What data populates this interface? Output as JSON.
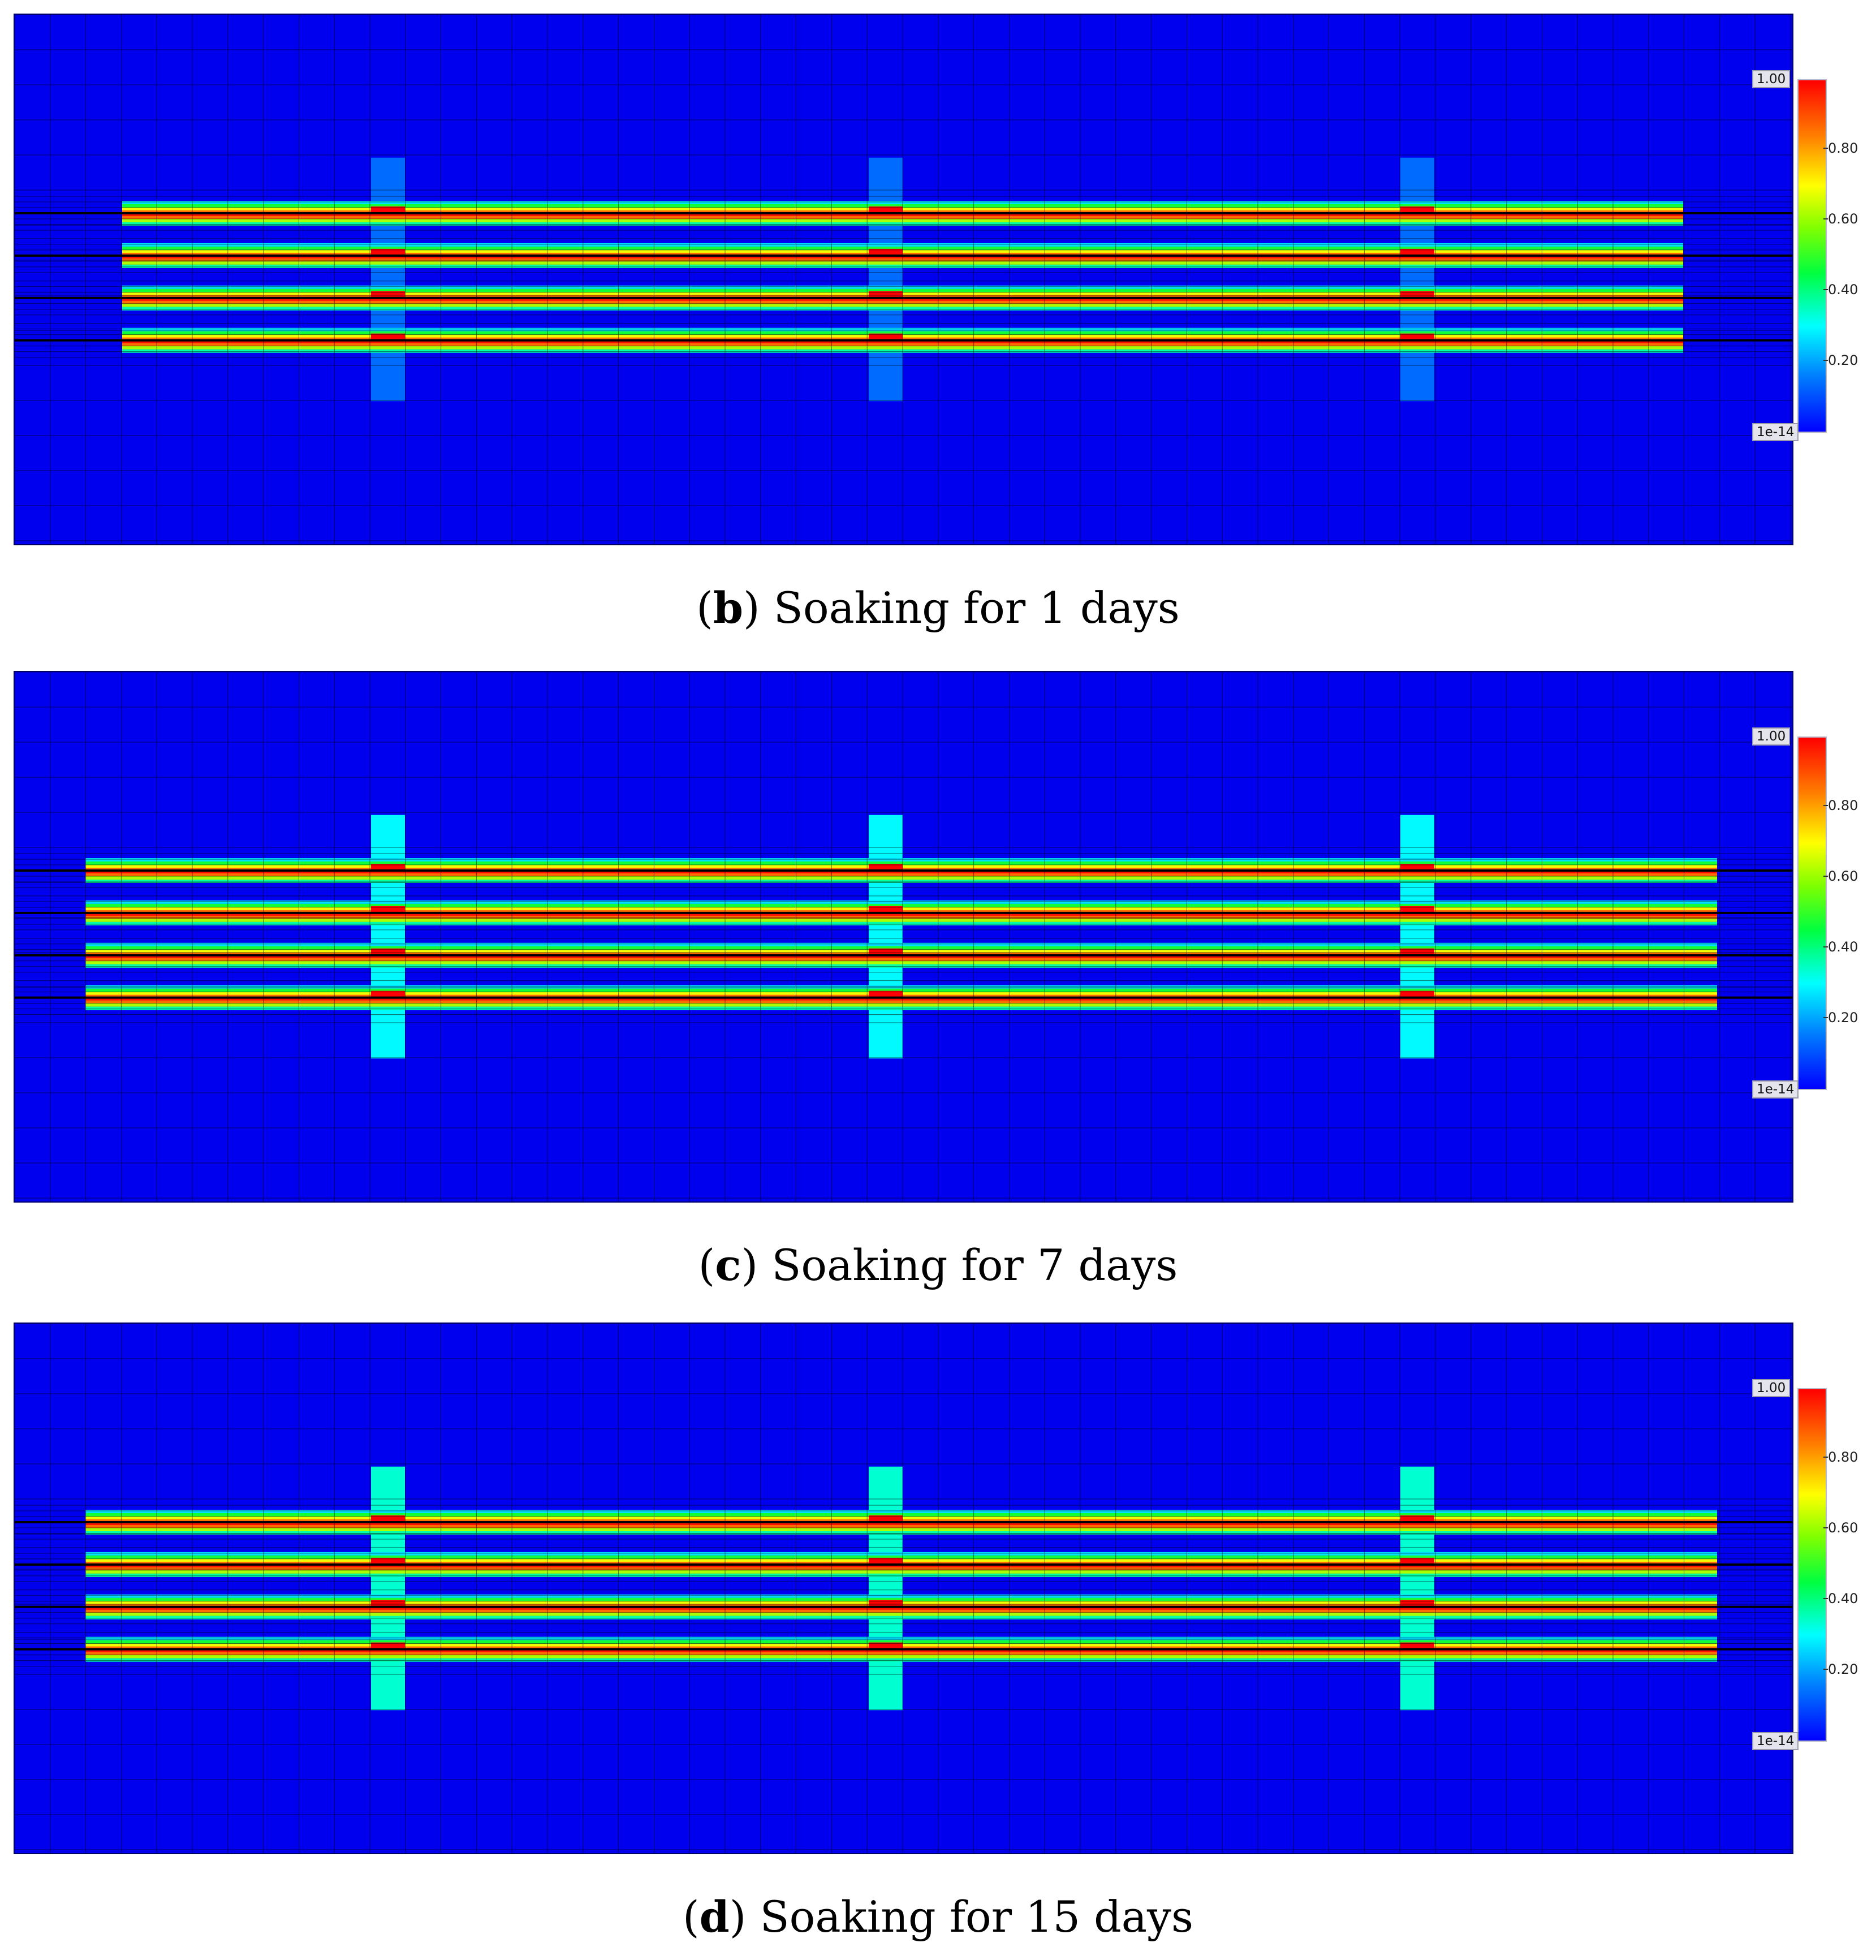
{
  "panels": [
    {
      "letter": "b",
      "caption": "Soaking for 1 days",
      "colorbar": {
        "max_label": "1.00",
        "min_label": "1e-14",
        "ticks": [
          "0.80",
          "0.60",
          "0.40",
          "0.20"
        ]
      },
      "halo_strength": 0.12,
      "band_extent": "narrow"
    },
    {
      "letter": "c",
      "caption": "Soaking for 7 days",
      "colorbar": {
        "max_label": "1.00",
        "min_label": "1e-14",
        "ticks": [
          "0.80",
          "0.60",
          "0.40",
          "0.20"
        ]
      },
      "halo_strength": 0.28,
      "band_extent": "wide"
    },
    {
      "letter": "d",
      "caption": "Soaking for 15 days",
      "colorbar": {
        "max_label": "1.00",
        "min_label": "1e-14",
        "ticks": [
          "0.80",
          "0.60",
          "0.40",
          "0.20"
        ]
      },
      "halo_strength": 0.32,
      "band_extent": "wide"
    }
  ],
  "colors": {
    "background": "#0000ee",
    "grid": "#000000",
    "scale": [
      "#0000ff",
      "#0080ff",
      "#00ffff",
      "#00ff40",
      "#80ff00",
      "#ffff00",
      "#ff8000",
      "#ff0000"
    ]
  }
}
